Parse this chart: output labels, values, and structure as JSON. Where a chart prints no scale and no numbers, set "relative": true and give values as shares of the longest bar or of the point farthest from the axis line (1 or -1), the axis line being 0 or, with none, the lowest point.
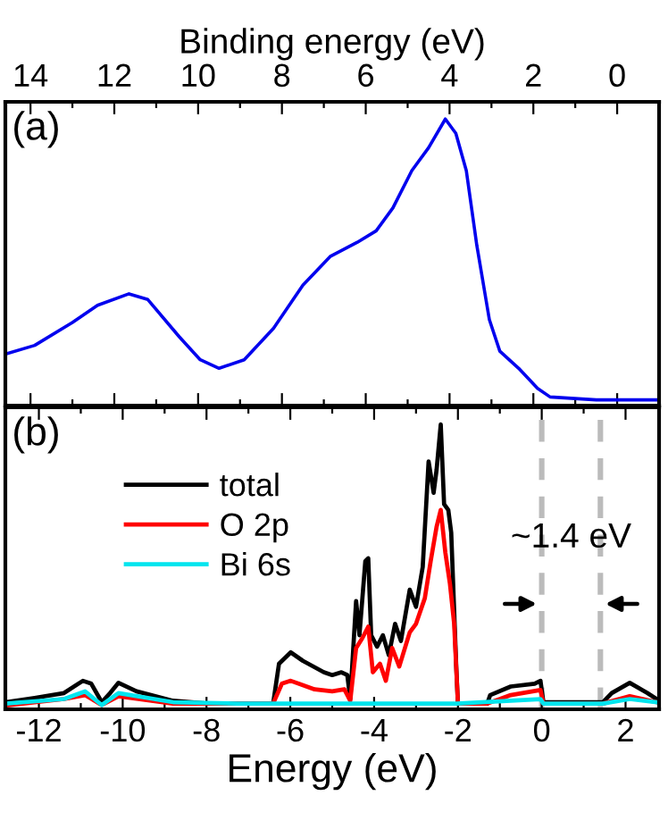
{
  "chart_data": [
    {
      "type": "line",
      "relative": true,
      "xlabel": "Binding energy (eV)",
      "xlim": [
        14.6,
        -1.0
      ],
      "xticks": [
        14,
        {
          "value": 13,
          "label": null
        },
        12,
        {
          "value": 11,
          "label": null
        },
        10,
        {
          "value": 9,
          "label": null
        },
        8,
        {
          "value": 7,
          "label": null
        },
        6,
        {
          "value": 5,
          "label": null
        },
        4,
        {
          "value": 3,
          "label": null
        },
        2,
        {
          "value": 1,
          "label": null
        },
        0
      ],
      "tick_labels": "x",
      "grid": false,
      "legend": false,
      "annotations": [
        "(a)"
      ],
      "series": [
        {
          "color": "#0000ee",
          "x": [
            14.6,
            13.9,
            13.0,
            12.4,
            11.65,
            11.2,
            10.45,
            9.95,
            9.5,
            8.9,
            8.2,
            7.5,
            6.85,
            6.2,
            5.75,
            5.35,
            4.9,
            4.5,
            4.1,
            3.85,
            3.6,
            3.35,
            3.05,
            2.8,
            2.35,
            1.9,
            1.6,
            0.5,
            -1.0
          ],
          "values": [
            0.18,
            0.21,
            0.29,
            0.35,
            0.39,
            0.37,
            0.24,
            0.16,
            0.13,
            0.16,
            0.27,
            0.42,
            0.52,
            0.57,
            0.61,
            0.69,
            0.82,
            0.9,
            1.0,
            0.95,
            0.82,
            0.56,
            0.3,
            0.19,
            0.13,
            0.06,
            0.03,
            0.02,
            0.02
          ]
        }
      ]
    },
    {
      "type": "line",
      "relative": true,
      "xlabel": "Energy (eV)",
      "xlim": [
        -12.8,
        2.8
      ],
      "xticks": [
        -12,
        {
          "value": -11,
          "label": null
        },
        -10,
        {
          "value": -9,
          "label": null
        },
        -8,
        {
          "value": -7,
          "label": null
        },
        -6,
        {
          "value": -5,
          "label": null
        },
        -4,
        {
          "value": -3,
          "label": null
        },
        -2,
        {
          "value": -1,
          "label": null
        },
        0,
        {
          "value": 1,
          "label": null
        },
        2
      ],
      "tick_labels": "x",
      "grid": false,
      "legend": "top left",
      "annotations": [
        "(b)",
        "~1.4 eV"
      ],
      "ref_lines": [
        {
          "axis": "x",
          "value": 0,
          "color": "#bbbbbb",
          "line_style": "dashed"
        },
        {
          "axis": "x",
          "value": 1.4,
          "color": "#bbbbbb",
          "line_style": "dashed"
        }
      ],
      "series": [
        {
          "name": "total",
          "color": "#000000",
          "x": [
            -12.8,
            -12.1,
            -11.4,
            -10.95,
            -10.75,
            -10.5,
            -10.3,
            -10.1,
            -9.67,
            -8.8,
            -7.97,
            -6.41,
            -6.27,
            -5.99,
            -5.7,
            -5.2,
            -5.0,
            -4.78,
            -4.64,
            -4.57,
            -4.43,
            -4.35,
            -4.21,
            -4.14,
            -4.07,
            -3.93,
            -3.79,
            -3.65,
            -3.5,
            -3.36,
            -3.15,
            -3.0,
            -2.84,
            -2.7,
            -2.58,
            -2.51,
            -2.41,
            -2.33,
            -2.23,
            -2.16,
            -2.04,
            -2.0,
            -1.3,
            -1.23,
            -0.74,
            -0.17,
            -0.03,
            0.04,
            1.46,
            1.67,
            2.1,
            2.52,
            2.74
          ],
          "values": [
            0.025,
            0.04,
            0.057,
            0.1,
            0.09,
            0.025,
            0.057,
            0.093,
            0.063,
            0.03,
            0.02,
            0.02,
            0.16,
            0.2,
            0.17,
            0.13,
            0.12,
            0.13,
            0.12,
            0.036,
            0.38,
            0.26,
            0.52,
            0.53,
            0.26,
            0.22,
            0.26,
            0.19,
            0.3,
            0.24,
            0.42,
            0.36,
            0.5,
            0.87,
            0.76,
            0.84,
            1.0,
            0.72,
            0.7,
            0.62,
            0.15,
            0.02,
            0.02,
            0.05,
            0.08,
            0.09,
            0.1,
            0.025,
            0.025,
            0.057,
            0.093,
            0.057,
            0.036
          ]
        },
        {
          "name": "O 2p",
          "color": "#ff0000",
          "x": [
            -12.8,
            -11.4,
            -10.9,
            -10.5,
            -10.1,
            -8.8,
            -6.41,
            -6.2,
            -5.99,
            -5.42,
            -5.0,
            -4.71,
            -4.57,
            -4.43,
            -4.28,
            -4.14,
            -4.03,
            -3.86,
            -3.72,
            -3.57,
            -3.4,
            -3.15,
            -3.0,
            -2.79,
            -2.65,
            -2.51,
            -2.41,
            -2.3,
            -2.19,
            -2.09,
            -2.0,
            -1.3,
            -0.74,
            -0.03,
            0.04,
            1.46,
            2.1,
            2.74
          ],
          "values": [
            0.013,
            0.036,
            0.05,
            0.015,
            0.046,
            0.02,
            0.02,
            0.09,
            0.1,
            0.07,
            0.063,
            0.07,
            0.03,
            0.215,
            0.25,
            0.29,
            0.13,
            0.16,
            0.1,
            0.215,
            0.15,
            0.27,
            0.3,
            0.39,
            0.52,
            0.64,
            0.7,
            0.55,
            0.44,
            0.3,
            0.02,
            0.02,
            0.05,
            0.068,
            0.02,
            0.02,
            0.046,
            0.025
          ]
        },
        {
          "name": "Bi 6s",
          "color": "#00e5ee",
          "x": [
            -12.8,
            -11.4,
            -10.9,
            -10.5,
            -10.1,
            -8.8,
            -7.26,
            -2.03,
            -0.74,
            -0.03,
            0.04,
            1.46,
            2.1,
            2.74
          ],
          "values": [
            0.02,
            0.036,
            0.063,
            0.015,
            0.057,
            0.025,
            0.02,
            0.02,
            0.03,
            0.036,
            0.02,
            0.02,
            0.036,
            0.025
          ]
        }
      ]
    }
  ]
}
